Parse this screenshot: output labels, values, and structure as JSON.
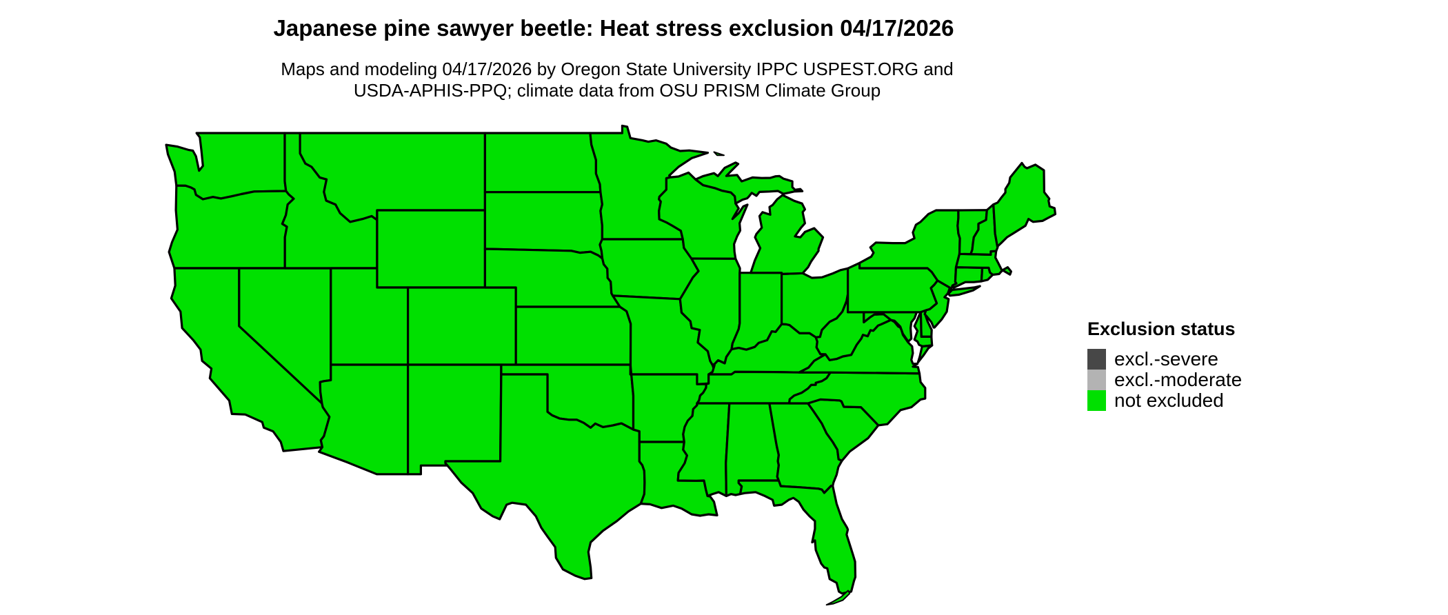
{
  "header": {
    "title": "Japanese pine sawyer beetle: Heat stress exclusion 04/17/2026",
    "subtitle_line1": "Maps and modeling 04/17/2026 by Oregon State University IPPC USPEST.ORG and",
    "subtitle_line2": "USDA-APHIS-PPQ; climate data from OSU PRISM Climate Group"
  },
  "legend": {
    "title": "Exclusion status",
    "items": [
      {
        "label": "excl.-severe",
        "color": "#474747"
      },
      {
        "label": "excl.-moderate",
        "color": "#B3B3B3"
      },
      {
        "label": "not excluded",
        "color": "#00E000"
      }
    ]
  },
  "map": {
    "region": "Continental United States",
    "fill_color": "#00E000",
    "border_color": "#000000",
    "status_all_states": "not excluded"
  }
}
